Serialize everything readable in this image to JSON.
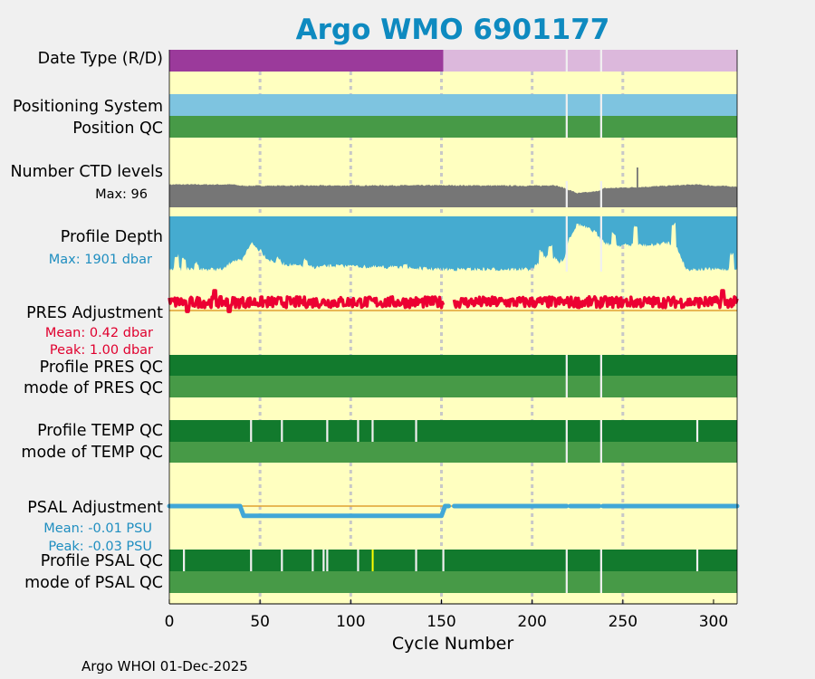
{
  "chart_data": {
    "type": "qc-timeline",
    "title": "Argo WMO 6901177",
    "xlabel": "Cycle Number",
    "xlim": [
      0,
      313
    ],
    "xticks": [
      0,
      50,
      100,
      150,
      200,
      250,
      300
    ],
    "footer": "Argo WHOI 01-Dec-2025",
    "panels": {
      "date_type": {
        "label": "Date Type (R/D)",
        "segments": [
          {
            "from": 0,
            "to": 151,
            "category": "R"
          },
          {
            "from": 151,
            "to": 313,
            "category": "D"
          }
        ],
        "gaps": [
          219,
          238
        ]
      },
      "positioning": {
        "label1": "Positioning System",
        "label2": "Position QC",
        "gaps": [
          219,
          238
        ]
      },
      "ctd_levels": {
        "label": "Number CTD levels",
        "max_label": "Max: 96",
        "max": 96,
        "knots": [
          [
            0,
            55
          ],
          [
            35,
            55
          ],
          [
            40,
            52
          ],
          [
            150,
            53
          ],
          [
            200,
            52
          ],
          [
            205,
            52
          ],
          [
            212,
            54
          ],
          [
            218,
            46
          ],
          [
            225,
            34
          ],
          [
            230,
            36
          ],
          [
            235,
            38
          ],
          [
            240,
            46
          ],
          [
            255,
            48
          ],
          [
            290,
            55
          ],
          [
            300,
            52
          ],
          [
            313,
            50
          ]
        ],
        "spikes": [
          [
            258,
            96
          ]
        ],
        "gaps": [
          219,
          238
        ]
      },
      "profile_depth": {
        "label": "Profile Depth",
        "max_label": "Max: 1901 dbar",
        "max": 1901,
        "knots": [
          [
            0,
            1820
          ],
          [
            30,
            1820
          ],
          [
            35,
            1500
          ],
          [
            40,
            1550
          ],
          [
            45,
            900
          ],
          [
            50,
            1200
          ],
          [
            55,
            1500
          ],
          [
            60,
            1600
          ],
          [
            70,
            1700
          ],
          [
            80,
            1750
          ],
          [
            90,
            1700
          ],
          [
            150,
            1820
          ],
          [
            200,
            1820
          ],
          [
            205,
            1500
          ],
          [
            210,
            1300
          ],
          [
            215,
            1600
          ],
          [
            218,
            1400
          ],
          [
            220,
            800
          ],
          [
            225,
            250
          ],
          [
            230,
            400
          ],
          [
            235,
            550
          ],
          [
            240,
            900
          ],
          [
            245,
            1000
          ],
          [
            255,
            980
          ],
          [
            265,
            1000
          ],
          [
            275,
            900
          ],
          [
            280,
            1100
          ],
          [
            285,
            1820
          ],
          [
            313,
            1820
          ]
        ],
        "dips": [
          [
            4,
            1350
          ],
          [
            8,
            1450
          ],
          [
            15,
            1600
          ],
          [
            50,
            1150
          ],
          [
            60,
            1450
          ],
          [
            75,
            1500
          ],
          [
            100,
            1650
          ],
          [
            122,
            1700
          ],
          [
            130,
            1600
          ],
          [
            205,
            1200
          ],
          [
            210,
            1000
          ],
          [
            245,
            600
          ],
          [
            257,
            350
          ],
          [
            278,
            250
          ],
          [
            310,
            1300
          ]
        ],
        "gaps": [
          219,
          238
        ]
      },
      "pres_adjustment": {
        "label": "PRES Adjustment",
        "mean_label": "Mean: 0.42 dbar",
        "peak_label": "Peak: 1.00 dbar",
        "mean": 0.42,
        "peak": 1.0,
        "ref": 0.0,
        "gaps": [
          [
            151,
            157
          ]
        ]
      },
      "pres_qc": {
        "label1": "Profile PRES QC",
        "label2": "mode of PRES QC",
        "gaps": [
          219,
          238
        ]
      },
      "temp_qc": {
        "label1": "Profile TEMP QC",
        "label2": "mode of TEMP QC",
        "gaps": [
          45,
          62,
          87,
          104,
          112,
          136,
          219,
          238,
          291
        ]
      },
      "psal_adjustment": {
        "label": "PSAL Adjustment",
        "mean_label": "Mean: -0.01 PSU",
        "peak_label": "Peak: -0.03 PSU",
        "mean": -0.01,
        "peak": -0.03,
        "ref": 0.0,
        "knots": [
          [
            0,
            0
          ],
          [
            39,
            0
          ],
          [
            41,
            -0.03
          ],
          [
            150,
            -0.03
          ],
          [
            152,
            0
          ],
          [
            313,
            0
          ]
        ],
        "gaps": [
          [
            154,
            157
          ],
          [
            219,
            221
          ],
          [
            237,
            239
          ]
        ]
      },
      "psal_qc": {
        "label1": "Profile PSAL QC",
        "label2": "mode of PSAL QC",
        "gaps": [
          8,
          45,
          62,
          79,
          85,
          87,
          104,
          136,
          151,
          219,
          238,
          291
        ],
        "flags": [
          112
        ]
      }
    },
    "colors": {
      "background": "#f0f0f0",
      "panel_bg": "#ffffc0",
      "title": "#0e8ac0",
      "real_time": "#9b3a9b",
      "delayed": "#dcb8dc",
      "positioning": "#7ec4e0",
      "qc_dark": "#127a2d",
      "qc_light": "#479a47",
      "ctd": "#767676",
      "depth": "#45abd0",
      "pres_line": "#ec0032",
      "pres_text": "#e0002e",
      "psal_line": "#41a7d7",
      "psal_text": "#1f8ec0",
      "ref_line": "#e0a030",
      "gap": "#f0f0f0",
      "grid": "#c8c8c8",
      "flag_yellow": "#ffff00"
    }
  }
}
